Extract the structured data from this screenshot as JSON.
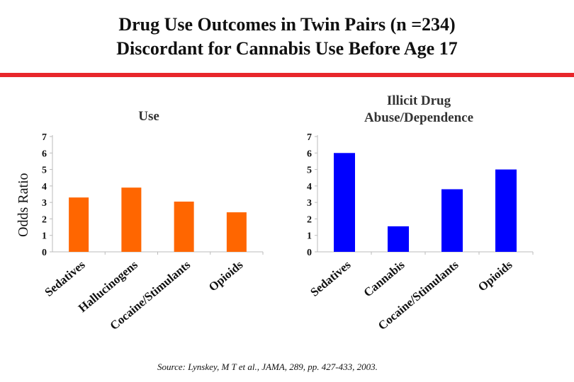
{
  "title": {
    "line1": "Drug Use Outcomes in Twin Pairs (n =234)",
    "line2": "Discordant for Cannabis Use Before Age 17"
  },
  "y_axis_label": "Odds Ratio",
  "source": "Source: Lynskey, M T et al., JAMA, 289, pp. 427-433, 2003.",
  "colors": {
    "rule": "#e8262b",
    "use": "#ff6600",
    "abuse": "#0000ff"
  },
  "chart_data": [
    {
      "type": "bar",
      "title": "Use",
      "categories": [
        "Sedatives",
        "Hallucinogens",
        "Cocaine/Stimulants",
        "Opioids"
      ],
      "values": [
        3.3,
        3.9,
        3.05,
        2.4
      ],
      "ylim": [
        0,
        7
      ],
      "yticks": [
        "0",
        "1",
        "2",
        "3",
        "4",
        "5",
        "6",
        "7"
      ],
      "ylabel": "Odds Ratio",
      "grid": false
    },
    {
      "type": "bar",
      "title": "Illicit Drug Abuse/Dependence",
      "title_lines": [
        "Illicit Drug",
        "Abuse/Dependence"
      ],
      "categories": [
        "Sedatives",
        "Cannabis",
        "Cocaine/Stimulants",
        "Opioids"
      ],
      "values": [
        6.0,
        1.55,
        3.8,
        5.0
      ],
      "ylim": [
        0,
        7
      ],
      "yticks": [
        "0",
        "1",
        "2",
        "3",
        "4",
        "5",
        "6",
        "7"
      ],
      "ylabel": "",
      "grid": false
    }
  ]
}
